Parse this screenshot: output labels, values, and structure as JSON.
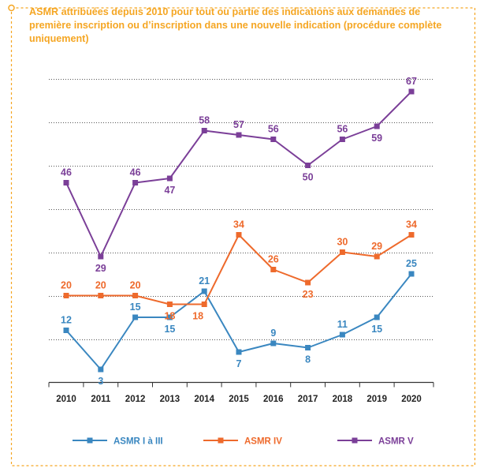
{
  "title": "ASMR attribuées depuis 2010 pour tout ou partie des indications aux demandes de première inscription ou d’inscription dans une nouvelle indication (procédure complète uniquement)",
  "colors": {
    "accent": "#f5a623",
    "asmr_i_iii": "#3a87c0",
    "asmr_iv": "#ee6a2c",
    "asmr_v": "#7b3f98",
    "grid": "#555555",
    "axis_text": "#222222"
  },
  "chart_data": {
    "type": "line",
    "title": "ASMR attribuées depuis 2010 pour tout ou partie des indications aux demandes de première inscription ou d’inscription dans une nouvelle indication (procédure complète uniquement)",
    "xlabel": "",
    "ylabel": "",
    "ylim": [
      0,
      70
    ],
    "grid": true,
    "legend_position": "bottom",
    "categories": [
      "2010",
      "2011",
      "2012",
      "2013",
      "2014",
      "2015",
      "2016",
      "2017",
      "2018",
      "2019",
      "2020"
    ],
    "series": [
      {
        "name": "ASMR I à III",
        "color": "#3a87c0",
        "values": [
          12,
          3,
          15,
          15,
          21,
          7,
          9,
          8,
          11,
          15,
          25
        ]
      },
      {
        "name": "ASMR IV",
        "color": "#ee6a2c",
        "values": [
          20,
          20,
          20,
          18,
          18,
          34,
          26,
          23,
          30,
          29,
          34
        ]
      },
      {
        "name": "ASMR V",
        "color": "#7b3f98",
        "values": [
          46,
          29,
          46,
          47,
          58,
          57,
          56,
          50,
          56,
          59,
          67
        ]
      }
    ]
  }
}
